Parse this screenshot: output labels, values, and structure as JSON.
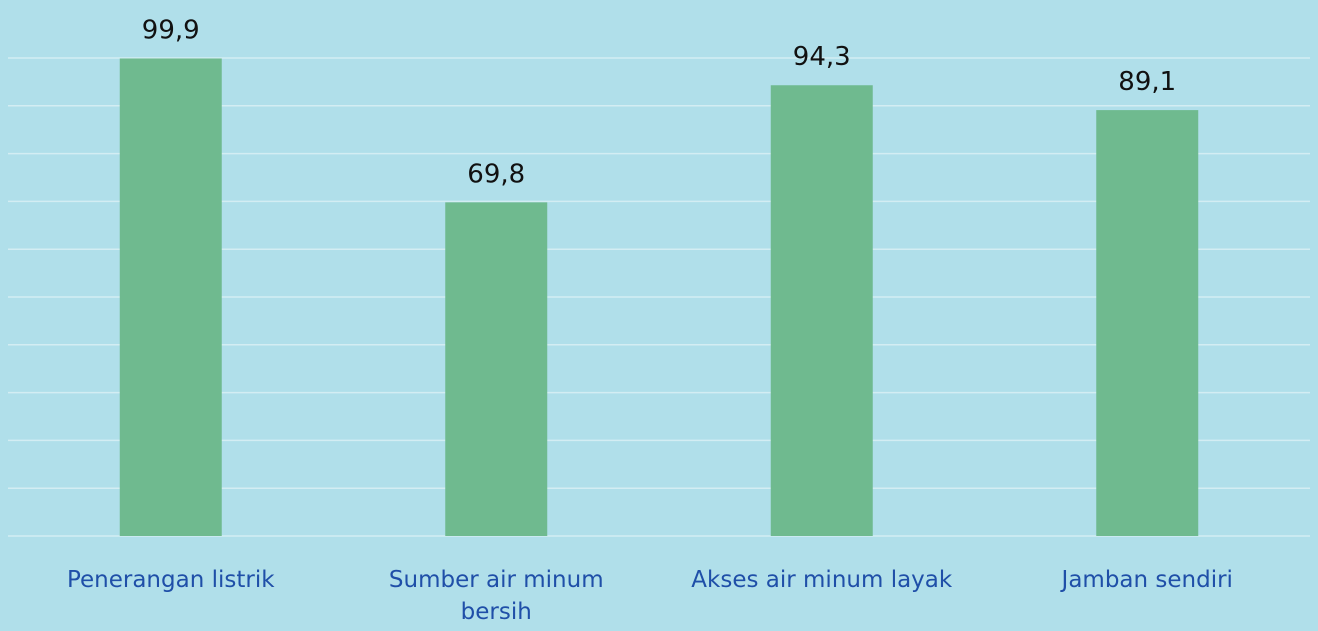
{
  "chart_data": {
    "type": "bar",
    "categories": [
      "Penerangan listrik",
      "Sumber air minum bersih",
      "Akses air minum layak",
      "Jamban sendiri"
    ],
    "values": [
      99.9,
      69.8,
      94.3,
      89.1
    ],
    "value_labels": [
      "99,9",
      "69,8",
      "94,3",
      "89,1"
    ],
    "color": "#6fba8f",
    "ylim": [
      0,
      100
    ],
    "yticks": [
      0,
      10,
      20,
      30,
      40,
      50,
      60,
      70,
      80,
      90,
      100
    ],
    "grid": true
  }
}
